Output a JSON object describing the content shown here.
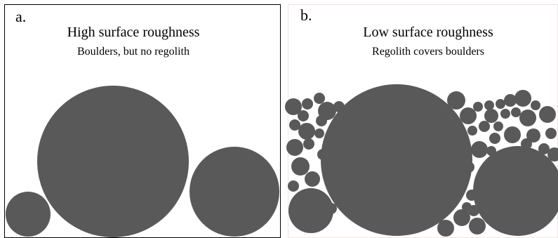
{
  "panels": [
    {
      "label": "a.",
      "title": "High surface roughness",
      "subtitle": "Boulders, but no regolith"
    },
    {
      "label": "b.",
      "title": "Low surface roughness",
      "subtitle": "Regolith covers boulders"
    }
  ]
}
